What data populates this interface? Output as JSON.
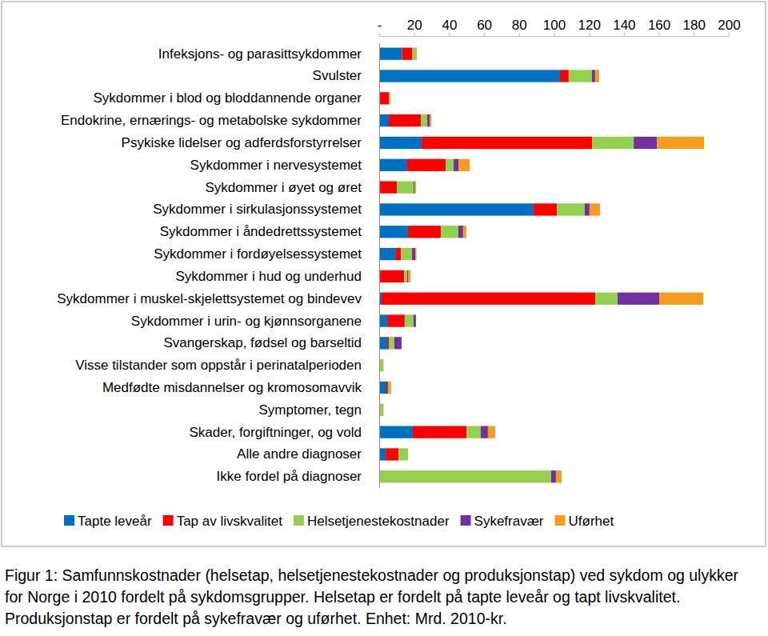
{
  "chart_data": {
    "type": "bar",
    "title": "Figur 1: Samfunnskostnader (helsetap, helsetjenestekostnader og produksjonstap) ved sykdom og ulykker for Norge i 2010 fordelt på sykdomsgrupper. Helsetap er fordelt på tapte leveår og tapt livskvalitet. Produksjonstap er fordelt på sykefravær og uførhet. Enhet: Mrd. 2010-kr.",
    "orientation": "horizontal",
    "stacked": true,
    "grid": false,
    "legend": "bottom",
    "categories": [
      "Infeksjons- og parasittsykdommer",
      "Svulster",
      "Sykdommer i blod og bloddannende organer",
      "Endokrine, ernærings- og metabolske sykdommer",
      "Psykiske lidelser og adferdsforstyrrelser",
      "Sykdommer i nervesystemet",
      "Sykdommer i øyet og øret",
      "Sykdommer i sirkulasjonssystemet",
      "Sykdommer i åndedrettssystemet",
      "Sykdommer i fordøyelsessystemet",
      "Sykdommer i hud og underhud",
      "Sykdommer i muskel-skjelettsystemet og bindevev",
      "Sykdommer i urin- og kjønnsorganene",
      "Svangerskap, fødsel og barseltid",
      "Visse tilstander som oppstår i perinatalperioden",
      "Medfødte misdannelser og kromosomavvik",
      "Symptomer, tegn",
      "Skader, forgiftninger, og vold",
      "Alle andre diagnoser",
      "Ikke fordel på diagnoser"
    ],
    "series": [
      {
        "name": "Tapte leveår",
        "color": "#0070C0",
        "values": [
          13,
          103.4,
          0.5,
          5.5,
          24.3,
          16,
          0.5,
          88.3,
          16.5,
          9.2,
          0.5,
          1.4,
          4.6,
          4.6,
          0,
          4.1,
          0,
          19.2,
          3.7,
          0
        ]
      },
      {
        "name": "Tap av livskvalitet",
        "color": "#FF0000",
        "values": [
          6,
          5,
          5,
          18.3,
          97.5,
          22,
          9.6,
          13.3,
          18.8,
          3.2,
          13.7,
          122.2,
          10,
          0.9,
          0,
          0.9,
          0,
          30.7,
          7.3,
          0
        ]
      },
      {
        "name": "Helsetjenestekostnader",
        "color": "#92D050",
        "values": [
          2,
          13.3,
          1,
          3.7,
          23.8,
          4.6,
          9.6,
          16,
          10,
          6.4,
          1.8,
          12.8,
          5,
          3.2,
          2.5,
          0.9,
          2.5,
          8.2,
          5.5,
          98.4
        ]
      },
      {
        "name": "Sykefravær",
        "color": "#7030A0",
        "values": [
          0,
          1.8,
          0,
          1.4,
          13.3,
          2.7,
          0.5,
          2.7,
          2.7,
          2,
          0.5,
          23.8,
          1.4,
          4.1,
          0,
          0,
          0,
          4.1,
          0,
          2.7
        ]
      },
      {
        "name": "Uførhet",
        "color": "#F39C1E",
        "values": [
          0.5,
          2.3,
          0,
          0.9,
          27,
          6.4,
          0.9,
          6,
          1.8,
          0.5,
          1.4,
          25.2,
          0,
          0,
          0,
          0.9,
          0,
          4.1,
          0,
          3.2
        ]
      }
    ],
    "xlim": [
      0,
      200
    ],
    "xticks": [
      {
        "value": 0,
        "label": "-"
      },
      20,
      40,
      60,
      80,
      100,
      120,
      140,
      160,
      180,
      200
    ]
  }
}
